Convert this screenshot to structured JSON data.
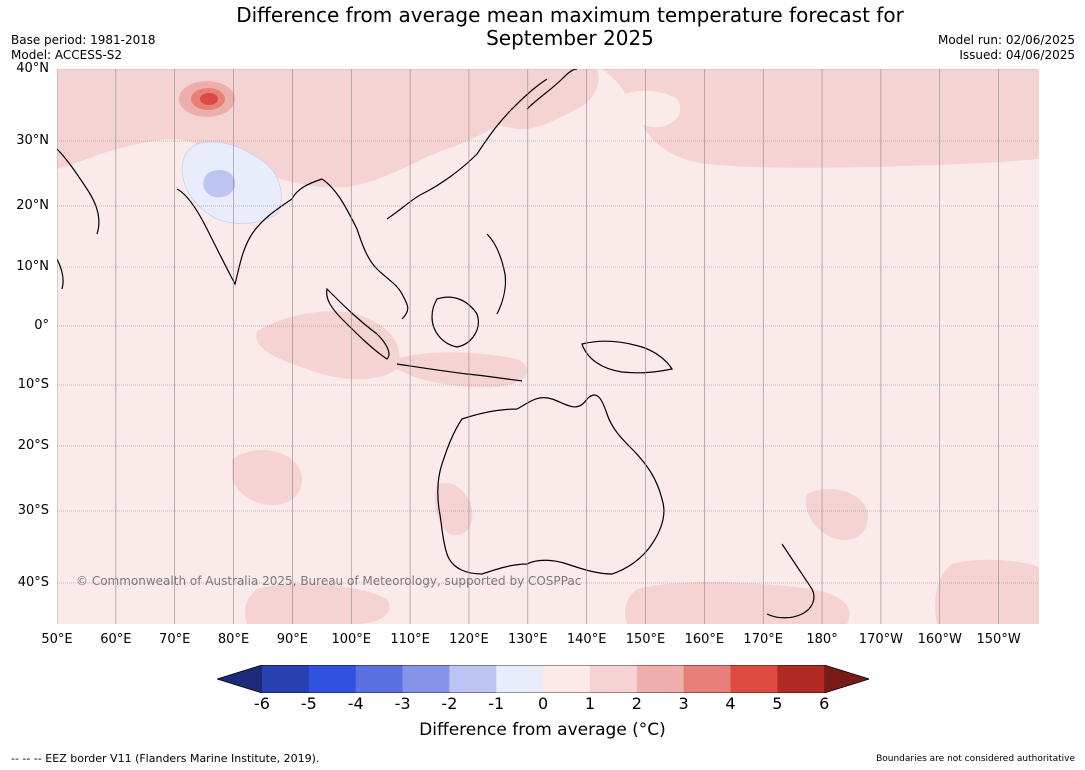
{
  "title_line1": "Difference from average mean maximum temperature forecast for",
  "title_line2": "September 2025",
  "base_period": "Base period: 1981-2018",
  "model": "Model: ACCESS-S2",
  "model_run": "Model run: 02/06/2025",
  "issued": "Issued: 04/06/2025",
  "copyright": "© Commonwealth of Australia 2025, Bureau of Meteorology, supported by COSPPac",
  "lat_labels": [
    "40°N",
    "30°N",
    "20°N",
    "10°N",
    "0°",
    "10°S",
    "20°S",
    "30°S",
    "40°S"
  ],
  "lon_labels": [
    "50°E",
    "60°E",
    "70°E",
    "80°E",
    "90°E",
    "100°E",
    "110°E",
    "120°E",
    "130°E",
    "140°E",
    "150°E",
    "160°E",
    "170°E",
    "180°",
    "170°W",
    "160°W",
    "150°W"
  ],
  "colorbar": {
    "ticks": [
      "-6",
      "-5",
      "-4",
      "-3",
      "-2",
      "-1",
      "0",
      "1",
      "2",
      "3",
      "4",
      "5",
      "6"
    ],
    "colors": [
      "#1c2a7a",
      "#2840b0",
      "#3050e0",
      "#5a70e0",
      "#8594e8",
      "#bcc4f4",
      "#e8ecfb",
      "#fce9e8",
      "#f5d3d3",
      "#eeaeab",
      "#e8807a",
      "#dc4a40",
      "#b02a24",
      "#7a1a16"
    ],
    "label": "Difference from average (°C)"
  },
  "footer_left": "--  --  -- EEZ border V11 (Flanders Marine Institute, 2019).",
  "footer_right": "Boundaries are not considered authoritative",
  "map_colors": {
    "background": "#fbeaea",
    "warm1": "#f5d3d3",
    "warm2": "#eeaeab",
    "warm3": "#e8807a",
    "warm4": "#dc4a40",
    "cool1": "#e8ecfb",
    "cool2": "#bcc4f4",
    "coast": "#000000",
    "grid": "#888888"
  }
}
